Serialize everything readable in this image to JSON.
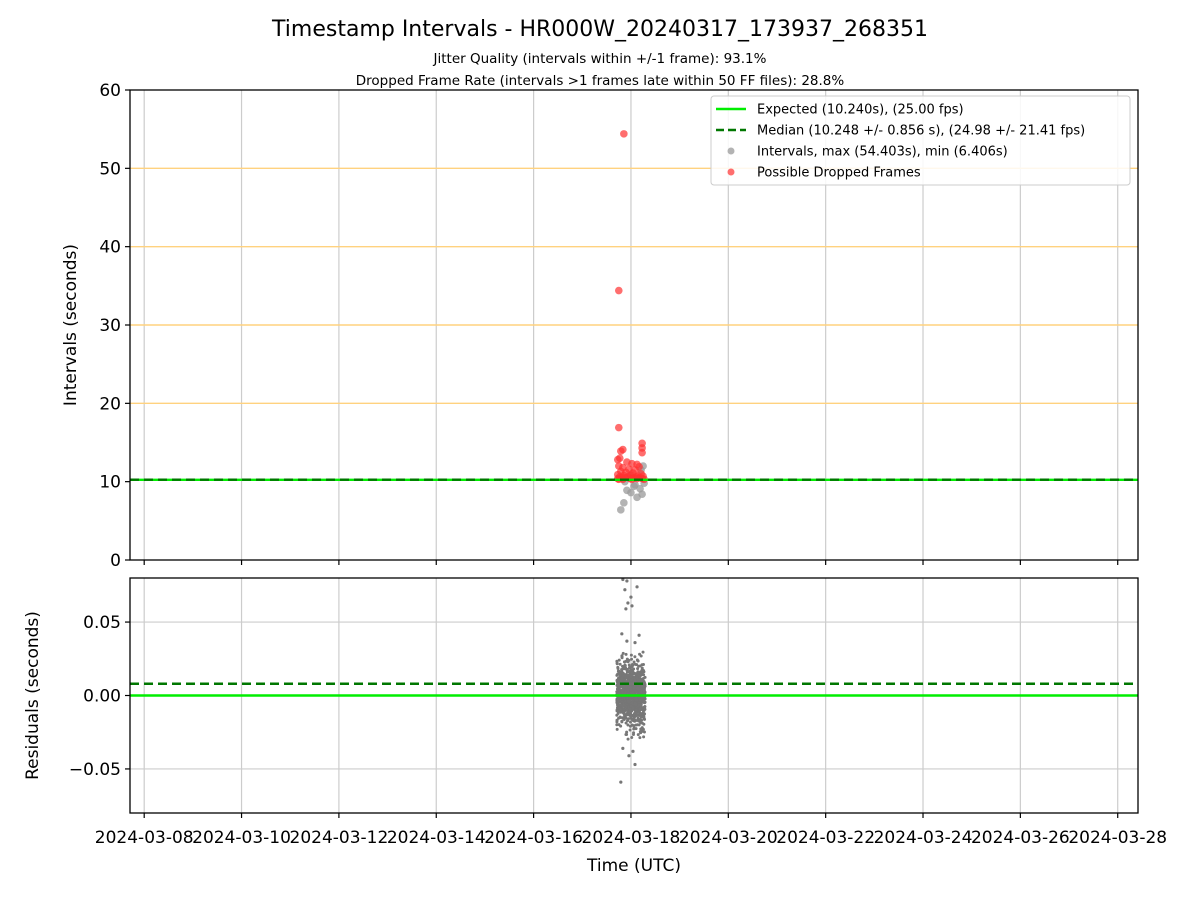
{
  "title": "Timestamp Intervals - HR000W_20240317_173937_268351",
  "subtitle_1": "Jitter Quality (intervals within +/-1 frame): 93.1%",
  "subtitle_2": "Dropped Frame Rate (intervals >1 frames late within 50 FF files): 28.8%",
  "colors": {
    "expected": "#00ee00",
    "median": "#007700",
    "intervals": "#999999",
    "dropped": "#ff3030",
    "residuals": "#777777",
    "threshold": "#ffd27f",
    "grid": "#cccccc"
  },
  "chart_data": [
    {
      "type": "scatter",
      "name": "intervals-panel",
      "ylabel": "Intervals (seconds)",
      "xlabel": "",
      "ylim": [
        0,
        60
      ],
      "xlim": [
        "2024-03-07 17:00",
        "2024-03-28 10:00"
      ],
      "yticks": [
        0,
        10,
        20,
        30,
        40,
        50,
        60
      ],
      "threshold_lines": [
        20,
        30,
        40,
        50
      ],
      "grid": true,
      "legend": {
        "placement": "top-right",
        "entries": [
          "Expected (10.240s), (25.00 fps)",
          "Median (10.248 +/- 0.856 s), (24.98 +/- 21.41 fps)",
          "Intervals, max (54.403s), min (6.406s)",
          "Possible Dropped Frames"
        ]
      },
      "expected_value": 10.24,
      "median_value": 10.248,
      "series": [
        {
          "kind": "intervals",
          "points": [
            {
              "x": "2024-03-17 19:00",
              "y": 6.4
            },
            {
              "x": "2024-03-17 20:30",
              "y": 7.3
            },
            {
              "x": "2024-03-17 22:00",
              "y": 8.9
            },
            {
              "x": "2024-03-18 00:00",
              "y": 8.6
            },
            {
              "x": "2024-03-18 01:30",
              "y": 9.4
            },
            {
              "x": "2024-03-18 03:00",
              "y": 8.0
            },
            {
              "x": "2024-03-18 04:30",
              "y": 9.1
            },
            {
              "x": "2024-03-18 05:30",
              "y": 8.4
            },
            {
              "x": "2024-03-18 06:30",
              "y": 9.8
            },
            {
              "x": "2024-03-18 02:00",
              "y": 9.6
            },
            {
              "x": "2024-03-17 21:00",
              "y": 10.0
            },
            {
              "x": "2024-03-18 05:00",
              "y": 11.5
            },
            {
              "x": "2024-03-18 06:00",
              "y": 12.0
            },
            {
              "x": "2024-03-17 23:30",
              "y": 10.8
            }
          ]
        },
        {
          "kind": "dropped",
          "points": [
            {
              "x": "2024-03-17 20:30",
              "y": 54.4
            },
            {
              "x": "2024-03-17 18:00",
              "y": 34.4
            },
            {
              "x": "2024-03-17 18:00",
              "y": 16.9
            },
            {
              "x": "2024-03-18 05:30",
              "y": 14.9
            },
            {
              "x": "2024-03-18 05:30",
              "y": 14.3
            },
            {
              "x": "2024-03-17 20:00",
              "y": 14.1
            },
            {
              "x": "2024-03-17 19:00",
              "y": 13.9
            },
            {
              "x": "2024-03-18 05:30",
              "y": 13.7
            },
            {
              "x": "2024-03-17 18:30",
              "y": 13.0
            },
            {
              "x": "2024-03-17 17:30",
              "y": 12.8
            },
            {
              "x": "2024-03-17 22:00",
              "y": 12.5
            },
            {
              "x": "2024-03-18 00:30",
              "y": 12.3
            },
            {
              "x": "2024-03-18 03:00",
              "y": 12.2
            },
            {
              "x": "2024-03-17 18:00",
              "y": 12.0
            },
            {
              "x": "2024-03-17 20:00",
              "y": 11.8
            },
            {
              "x": "2024-03-18 04:00",
              "y": 11.9
            },
            {
              "x": "2024-03-17 23:00",
              "y": 11.6
            },
            {
              "x": "2024-03-18 02:00",
              "y": 11.5
            },
            {
              "x": "2024-03-17 19:00",
              "y": 11.3
            },
            {
              "x": "2024-03-17 21:30",
              "y": 11.2
            },
            {
              "x": "2024-03-18 01:00",
              "y": 11.1
            },
            {
              "x": "2024-03-18 05:00",
              "y": 11.0
            },
            {
              "x": "2024-03-17 17:30",
              "y": 10.9
            },
            {
              "x": "2024-03-17 20:30",
              "y": 10.8
            },
            {
              "x": "2024-03-18 00:00",
              "y": 10.8
            },
            {
              "x": "2024-03-18 03:30",
              "y": 10.7
            },
            {
              "x": "2024-03-18 06:00",
              "y": 10.7
            },
            {
              "x": "2024-03-17 18:30",
              "y": 10.6
            },
            {
              "x": "2024-03-17 22:30",
              "y": 10.6
            },
            {
              "x": "2024-03-18 02:30",
              "y": 10.6
            },
            {
              "x": "2024-03-17 19:30",
              "y": 10.5
            },
            {
              "x": "2024-03-17 21:00",
              "y": 10.5
            },
            {
              "x": "2024-03-18 01:30",
              "y": 10.5
            },
            {
              "x": "2024-03-18 04:30",
              "y": 10.5
            },
            {
              "x": "2024-03-17 17:30",
              "y": 10.4
            },
            {
              "x": "2024-03-17 23:30",
              "y": 10.4
            },
            {
              "x": "2024-03-18 03:00",
              "y": 10.4
            },
            {
              "x": "2024-03-18 05:30",
              "y": 10.4
            },
            {
              "x": "2024-03-17 18:00",
              "y": 10.3
            },
            {
              "x": "2024-03-17 20:00",
              "y": 10.3
            },
            {
              "x": "2024-03-18 00:30",
              "y": 10.3
            },
            {
              "x": "2024-03-18 06:30",
              "y": 10.3
            }
          ]
        },
        {
          "kind": "expected",
          "name": "Expected (10.240s), (25.00 fps)"
        },
        {
          "kind": "median",
          "name": "Median (10.248 +/- 0.856 s), (24.98 +/- 21.41 fps)"
        }
      ]
    },
    {
      "type": "scatter",
      "name": "residuals-panel",
      "ylabel": "Residuals (seconds)",
      "xlabel": "Time (UTC)",
      "ylim": [
        -0.08,
        0.08
      ],
      "yticks": [
        -0.05,
        0.0,
        0.05
      ],
      "ytick_labels": [
        "−0.05",
        "0.00",
        "0.05"
      ],
      "xlim": [
        "2024-03-07 17:00",
        "2024-03-28 10:00"
      ],
      "xticks": [
        "2024-03-08",
        "2024-03-10",
        "2024-03-12",
        "2024-03-14",
        "2024-03-16",
        "2024-03-18",
        "2024-03-20",
        "2024-03-22",
        "2024-03-24",
        "2024-03-26",
        "2024-03-28"
      ],
      "grid": true,
      "expected_value": 0.0,
      "median_value": 0.008,
      "cluster": {
        "x_start": "2024-03-17 17:00",
        "x_end": "2024-03-18 07:00",
        "core_y_range": [
          -0.03,
          0.03
        ],
        "outliers": [
          {
            "x": "2024-03-17 20:00",
            "y": 0.079
          },
          {
            "x": "2024-03-17 22:00",
            "y": 0.078
          },
          {
            "x": "2024-03-18 03:00",
            "y": 0.074
          },
          {
            "x": "2024-03-17 21:00",
            "y": 0.072
          },
          {
            "x": "2024-03-18 00:00",
            "y": 0.067
          },
          {
            "x": "2024-03-17 22:30",
            "y": 0.063
          },
          {
            "x": "2024-03-18 00:30",
            "y": 0.061
          },
          {
            "x": "2024-03-17 21:30",
            "y": 0.059
          },
          {
            "x": "2024-03-17 19:30",
            "y": 0.042
          },
          {
            "x": "2024-03-18 04:00",
            "y": 0.041
          },
          {
            "x": "2024-03-17 22:00",
            "y": 0.037
          },
          {
            "x": "2024-03-18 02:00",
            "y": 0.036
          },
          {
            "x": "2024-03-17 20:00",
            "y": -0.036
          },
          {
            "x": "2024-03-18 01:00",
            "y": -0.038
          },
          {
            "x": "2024-03-17 23:00",
            "y": -0.041
          },
          {
            "x": "2024-03-18 02:00",
            "y": -0.047
          },
          {
            "x": "2024-03-17 19:00",
            "y": -0.059
          }
        ]
      }
    }
  ]
}
